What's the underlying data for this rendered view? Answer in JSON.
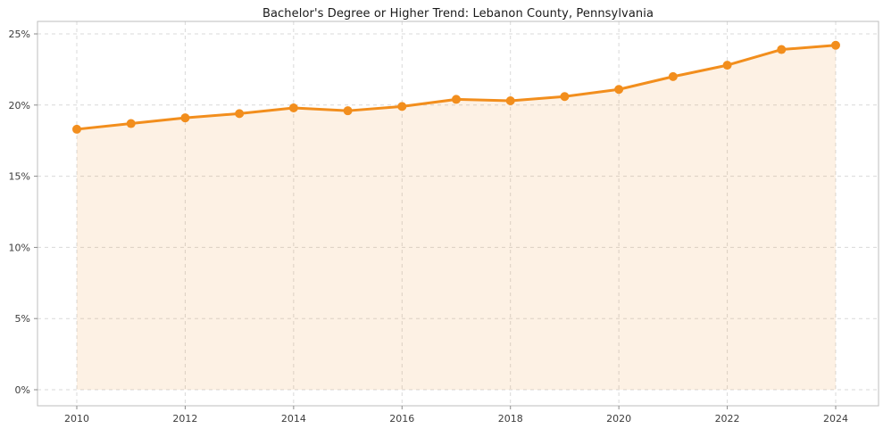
{
  "chart_data": {
    "type": "line",
    "title": "Bachelor's Degree or Higher Trend: Lebanon County, Pennsylvania",
    "xlabel": "",
    "ylabel": "",
    "x": [
      2010,
      2011,
      2012,
      2013,
      2014,
      2015,
      2016,
      2017,
      2018,
      2019,
      2020,
      2021,
      2022,
      2023,
      2024
    ],
    "values": [
      18.3,
      18.7,
      19.1,
      19.4,
      19.8,
      19.6,
      19.9,
      20.4,
      20.3,
      20.6,
      21.1,
      22.0,
      22.8,
      23.9,
      24.2
    ],
    "x_tick_values": [
      2010,
      2012,
      2014,
      2016,
      2018,
      2020,
      2022,
      2024
    ],
    "x_tick_labels": [
      "2010",
      "2012",
      "2014",
      "2016",
      "2018",
      "2020",
      "2022",
      "2024"
    ],
    "y_tick_values": [
      0,
      5,
      10,
      15,
      20,
      25
    ],
    "y_tick_labels": [
      "0%",
      "5%",
      "10%",
      "15%",
      "20%",
      "25%"
    ],
    "ylim": [
      0,
      25
    ],
    "grid": true,
    "legend": false,
    "area_fill": true,
    "colors": {
      "line": "#f28e1d",
      "marker": "#f28e1d",
      "fill": "#f28e1d",
      "fill_opacity": "0.12",
      "grid": "#d9d9d9",
      "border": "#bdbdbd",
      "tick": "#8a8a8a"
    }
  }
}
